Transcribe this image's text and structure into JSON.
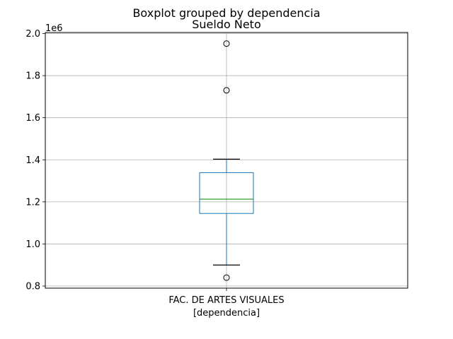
{
  "chart_data": {
    "type": "boxplot",
    "suptitle": "Boxplot grouped by dependencia",
    "title": "Sueldo Neto",
    "xlabel": "[dependencia]",
    "ylabel": "",
    "y_offset_label": "1e6",
    "categories": [
      "FAC. DE ARTES VISUALES"
    ],
    "ylim": [
      0.79,
      2.005
    ],
    "y_ticks": [
      0.8,
      1.0,
      1.2,
      1.4,
      1.6,
      1.8,
      2.0
    ],
    "y_tick_labels": [
      "0.8",
      "1.0",
      "1.2",
      "1.4",
      "1.6",
      "1.8",
      "2.0"
    ],
    "grid": true,
    "boxes": [
      {
        "category": "FAC. DE ARTES VISUALES",
        "whisker_low": 0.9,
        "q1": 1.145,
        "median": 1.213,
        "q3": 1.339,
        "whisker_high": 1.403,
        "outliers": [
          0.84,
          1.73,
          1.952
        ]
      }
    ],
    "colors": {
      "box": "#1f77b4",
      "median": "#2ca02c",
      "whisker_cap": "#000000",
      "grid": "#b0b0b0"
    }
  }
}
